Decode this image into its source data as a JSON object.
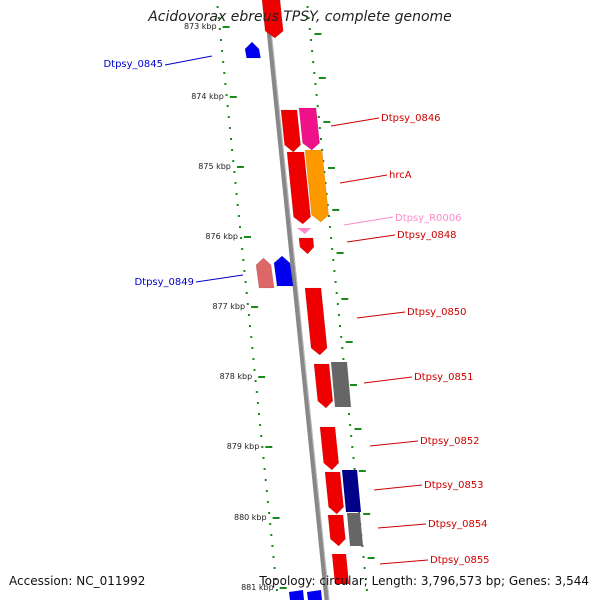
{
  "title": "Acidovorax ebreus TPSY, complete genome",
  "footer": {
    "accession": "Accession: NC_011992",
    "topology": "Topology: circular; Length: 3,796,573 bp; Genes: 3,544"
  },
  "kbp_ticks": [
    "873 kbp",
    "874 kbp",
    "875 kbp",
    "876 kbp",
    "877 kbp",
    "878 kbp",
    "879 kbp",
    "880 kbp",
    "881 kbp"
  ],
  "genes": [
    {
      "label": "Dtpsy_0845",
      "strand": "-",
      "color": "#0000ee",
      "label_color": "#0000cc"
    },
    {
      "label": "Dtpsy_0846",
      "strand": "+",
      "color": "#ee1188",
      "label_color": "#cc0000"
    },
    {
      "label": "hrcA",
      "strand": "+",
      "color": "#ff9900",
      "label_color": "#cc0000"
    },
    {
      "label": "Dtpsy_R0006",
      "strand": "+",
      "color": "#ff88cc",
      "label_color": "#ff88cc"
    },
    {
      "label": "Dtpsy_0848",
      "strand": "+",
      "color": "#ee0000",
      "label_color": "#cc0000"
    },
    {
      "label": "Dtpsy_0849",
      "strand": "-",
      "color": "#0000ee",
      "label_color": "#0000cc"
    },
    {
      "label": "Dtpsy_0850",
      "strand": "+",
      "color": "#ee0000",
      "label_color": "#cc0000"
    },
    {
      "label": "Dtpsy_0851",
      "strand": "+",
      "color": "#666666",
      "label_color": "#cc0000"
    },
    {
      "label": "Dtpsy_0852",
      "strand": "+",
      "color": "#ee0000",
      "label_color": "#cc0000"
    },
    {
      "label": "Dtpsy_0853",
      "strand": "+",
      "color": "#000088",
      "label_color": "#cc0000"
    },
    {
      "label": "Dtpsy_0854",
      "strand": "+",
      "color": "#666666",
      "label_color": "#cc0000"
    },
    {
      "label": "Dtpsy_0855",
      "strand": "+",
      "color": "#ee0000",
      "label_color": "#cc0000"
    }
  ]
}
